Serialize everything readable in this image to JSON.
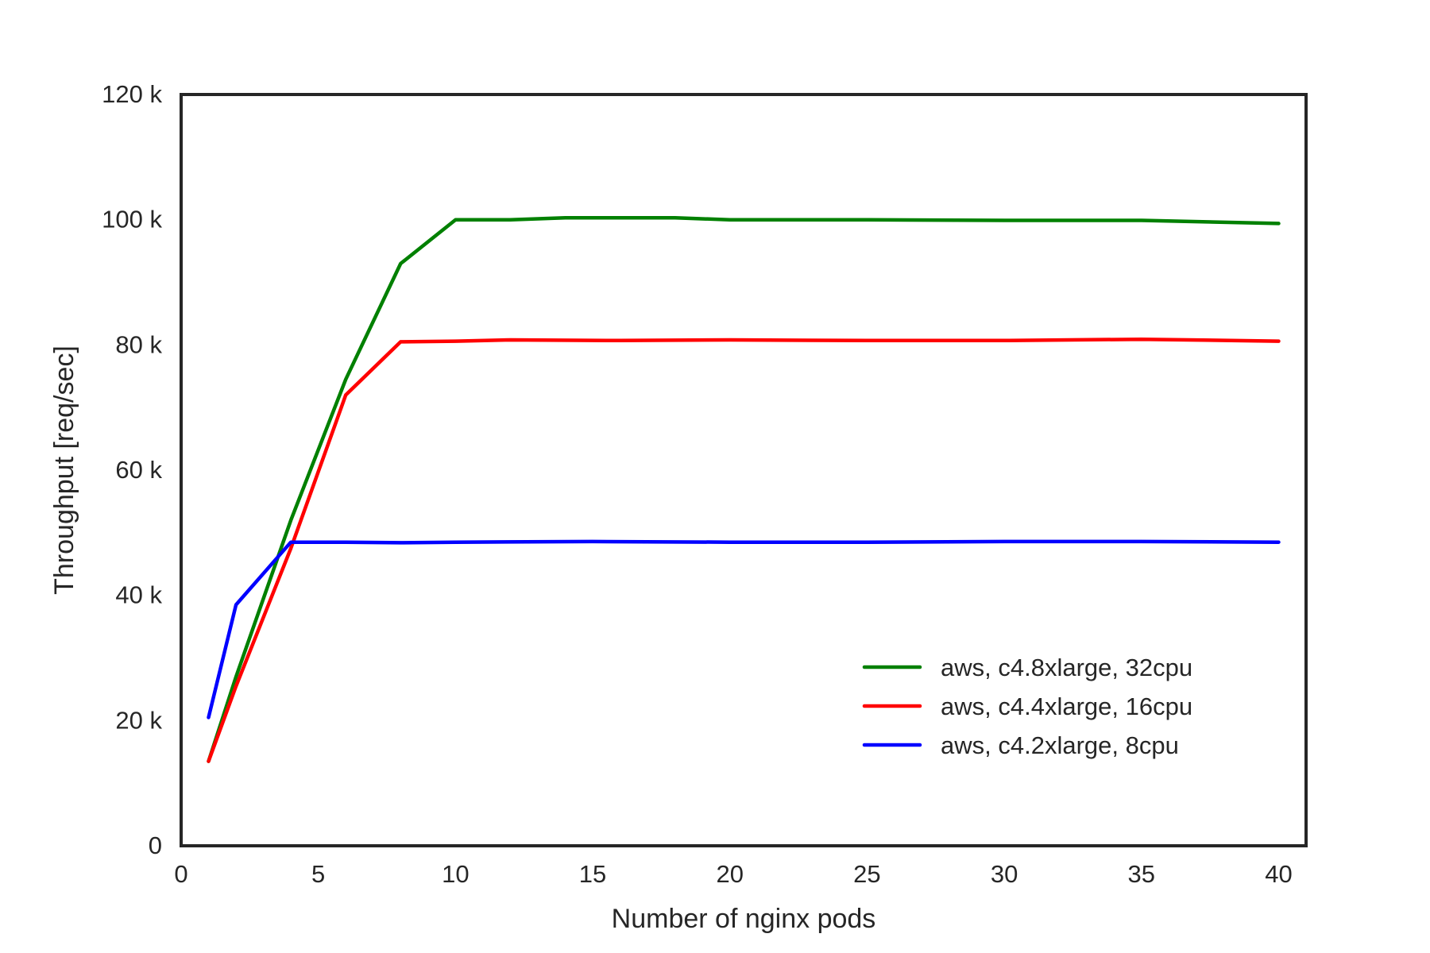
{
  "chart_data": {
    "type": "line",
    "title": "",
    "xlabel": "Number of nginx pods",
    "ylabel": "Throughput [req/sec]",
    "xlim": [
      0,
      41
    ],
    "ylim": [
      0,
      120000
    ],
    "x_ticks": [
      {
        "value": 0,
        "label": "0"
      },
      {
        "value": 5,
        "label": "5"
      },
      {
        "value": 10,
        "label": "10"
      },
      {
        "value": 15,
        "label": "15"
      },
      {
        "value": 20,
        "label": "20"
      },
      {
        "value": 25,
        "label": "25"
      },
      {
        "value": 30,
        "label": "30"
      },
      {
        "value": 35,
        "label": "35"
      },
      {
        "value": 40,
        "label": "40"
      }
    ],
    "y_ticks": [
      {
        "value": 0,
        "label": "0"
      },
      {
        "value": 20000,
        "label": "20 k"
      },
      {
        "value": 40000,
        "label": "40 k"
      },
      {
        "value": 60000,
        "label": "60 k"
      },
      {
        "value": 80000,
        "label": "80 k"
      },
      {
        "value": 100000,
        "label": "100 k"
      },
      {
        "value": 120000,
        "label": "120 k"
      }
    ],
    "grid": false,
    "legend_position": "lower-right",
    "series": [
      {
        "name": "aws, c4.8xlarge, 32cpu",
        "color": "#008000",
        "x": [
          1,
          2,
          4,
          6,
          8,
          10,
          12,
          14,
          16,
          18,
          20,
          25,
          30,
          35,
          40
        ],
        "y": [
          13500,
          27000,
          52000,
          74500,
          93000,
          100000,
          100000,
          100300,
          100300,
          100300,
          100000,
          100000,
          99900,
          99900,
          99400
        ]
      },
      {
        "name": "aws, c4.4xlarge, 16cpu",
        "color": "#ff0000",
        "x": [
          1,
          2,
          4,
          6,
          8,
          10,
          12,
          16,
          20,
          25,
          30,
          35,
          40
        ],
        "y": [
          13500,
          25500,
          47500,
          72000,
          80500,
          80600,
          80800,
          80700,
          80800,
          80700,
          80700,
          80900,
          80600
        ]
      },
      {
        "name": "aws, c4.2xlarge, 8cpu",
        "color": "#0000ff",
        "x": [
          1,
          2,
          4,
          6,
          8,
          10,
          15,
          20,
          25,
          30,
          35,
          40
        ],
        "y": [
          20500,
          38500,
          48500,
          48500,
          48400,
          48500,
          48600,
          48500,
          48500,
          48600,
          48600,
          48500
        ]
      }
    ]
  }
}
